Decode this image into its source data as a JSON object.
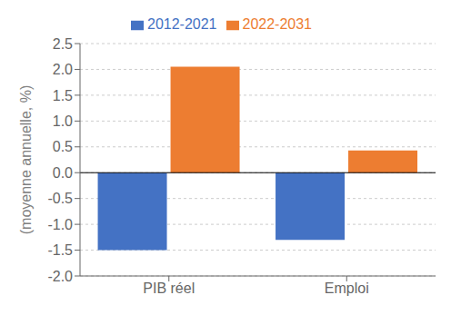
{
  "chart_data": {
    "type": "bar",
    "categories": [
      "PIB réel",
      "Emploi"
    ],
    "series": [
      {
        "name": "2012-2021",
        "color": "#4472C4",
        "values": [
          -1.5,
          -1.3
        ]
      },
      {
        "name": "2022-2031",
        "color": "#ED7D31",
        "values": [
          2.05,
          0.43
        ]
      }
    ],
    "ylabel": "(moyenne annuelle, %)",
    "ylim": [
      -2.0,
      2.5
    ],
    "yticks": [
      {
        "value": -2.0,
        "label": "-2.0"
      },
      -1.5,
      {
        "value": -1.0,
        "label": "-1.0"
      },
      -0.5,
      {
        "value": 0.0,
        "label": "0.0"
      },
      0.5,
      {
        "value": 1.0,
        "label": "1.0"
      },
      1.5,
      {
        "value": 2.0,
        "label": "2.0"
      },
      2.5
    ],
    "grid": true,
    "legend": "top"
  }
}
